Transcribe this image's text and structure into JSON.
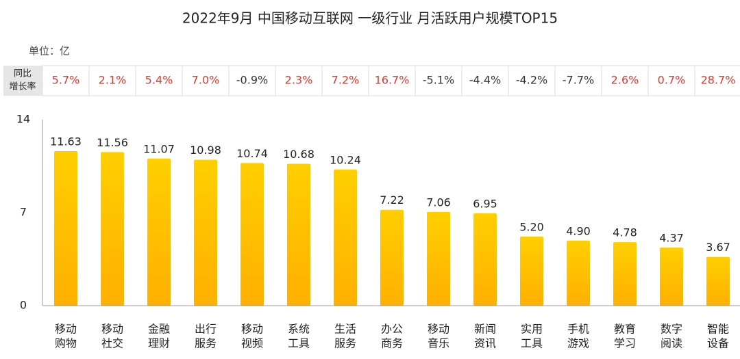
{
  "chart_data": {
    "type": "bar",
    "title": "2022年9月 中国移动互联网 一级行业 月活跃用户规模TOP15",
    "unit": "单位：亿",
    "categories": [
      [
        "移动",
        "购物"
      ],
      [
        "移动",
        "社交"
      ],
      [
        "金融",
        "理财"
      ],
      [
        "出行",
        "服务"
      ],
      [
        "移动",
        "视频"
      ],
      [
        "系统",
        "工具"
      ],
      [
        "生活",
        "服务"
      ],
      [
        "办公",
        "商务"
      ],
      [
        "移动",
        "音乐"
      ],
      [
        "新闻",
        "资讯"
      ],
      [
        "实用",
        "工具"
      ],
      [
        "手机",
        "游戏"
      ],
      [
        "教育",
        "学习"
      ],
      [
        "数字",
        "阅读"
      ],
      [
        "智能",
        "设备"
      ]
    ],
    "values": [
      11.63,
      11.56,
      11.07,
      10.98,
      10.74,
      10.68,
      10.24,
      7.22,
      7.06,
      6.95,
      5.2,
      4.9,
      4.78,
      4.37,
      3.67
    ],
    "value_labels": [
      "11.63",
      "11.56",
      "11.07",
      "10.98",
      "10.74",
      "10.68",
      "10.24",
      "7.22",
      "7.06",
      "6.95",
      "5.20",
      "4.90",
      "4.78",
      "4.37",
      "3.67"
    ],
    "color": "#ffc000",
    "ylim": [
      0,
      14
    ],
    "yticks": [
      0,
      7,
      14
    ],
    "growth": {
      "label": [
        "同比",
        "增长率"
      ],
      "values": [
        5.7,
        2.1,
        5.4,
        7.0,
        -0.9,
        2.3,
        7.2,
        16.7,
        -5.1,
        -4.4,
        -4.2,
        -7.7,
        2.6,
        0.7,
        28.7
      ],
      "value_labels": [
        "5.7%",
        "2.1%",
        "5.4%",
        "7.0%",
        "-0.9%",
        "2.3%",
        "7.2%",
        "16.7%",
        "-5.1%",
        "-4.4%",
        "-4.2%",
        "-7.7%",
        "2.6%",
        "0.7%",
        "28.7%"
      ],
      "positive_color": "#e8332a",
      "negative_color": "#333333"
    }
  }
}
